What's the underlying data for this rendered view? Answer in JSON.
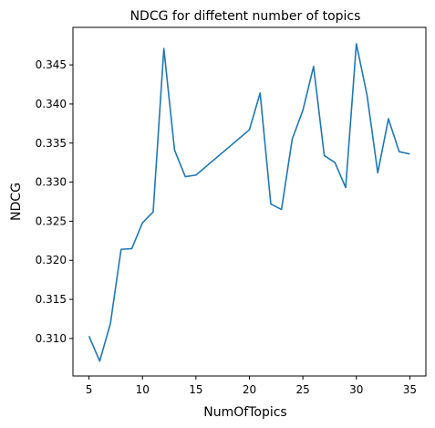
{
  "chart_data": {
    "type": "line",
    "title": "NDCG for diffetent number of topics",
    "xlabel": "NumOfTopics",
    "ylabel": "NDCG",
    "xlim": [
      3.5,
      36.5
    ],
    "ylim": [
      0.3052,
      0.3498
    ],
    "xticks": [
      5,
      10,
      15,
      20,
      25,
      30,
      35
    ],
    "xtick_labels": [
      "5",
      "10",
      "15",
      "20",
      "25",
      "30",
      "35"
    ],
    "yticks": [
      0.31,
      0.315,
      0.32,
      0.325,
      0.33,
      0.335,
      0.34,
      0.345
    ],
    "ytick_labels": [
      "0.310",
      "0.315",
      "0.320",
      "0.325",
      "0.330",
      "0.335",
      "0.340",
      "0.345"
    ],
    "grid": false,
    "series": [
      {
        "color": "#1f77b4",
        "x": [
          5,
          6,
          7,
          8,
          9,
          10,
          11,
          12,
          13,
          14,
          15,
          20,
          21,
          22,
          23,
          24,
          25,
          26,
          27,
          28,
          29,
          30,
          31,
          32,
          33,
          34,
          35
        ],
        "y": [
          0.3103,
          0.3071,
          0.3119,
          0.3214,
          0.3215,
          0.3248,
          0.3262,
          0.3471,
          0.3341,
          0.3307,
          0.3309,
          0.3367,
          0.3414,
          0.3272,
          0.3265,
          0.3355,
          0.3392,
          0.3448,
          0.3334,
          0.3325,
          0.3293,
          0.3477,
          0.3411,
          0.3312,
          0.3381,
          0.3339,
          0.3336
        ]
      }
    ]
  }
}
